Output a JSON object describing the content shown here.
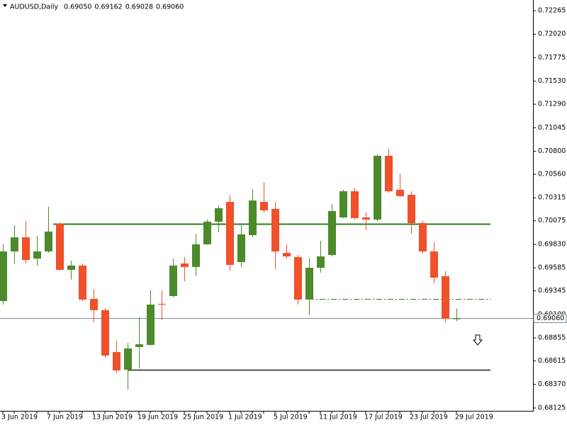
{
  "chart_data": {
    "type": "candlestick",
    "header": {
      "symbol": "AUDUSD,Daily",
      "ohlc_labels": [
        "0.69050",
        "0.69162",
        "0.69028",
        "0.69060"
      ]
    },
    "categories": [
      "3 Jun 2019",
      null,
      null,
      null,
      "7 Jun 2019",
      null,
      null,
      null,
      "13 Jun 2019",
      null,
      null,
      null,
      "19 Jun 2019",
      null,
      null,
      null,
      "25 Jun 2019",
      null,
      null,
      null,
      "1 Jul 2019",
      null,
      null,
      null,
      "5 Jul 2019",
      null,
      null,
      null,
      "11 Jul 2019",
      null,
      null,
      null,
      "17 Jul 2019",
      null,
      null,
      null,
      "23 Jul 2019",
      null,
      null,
      null,
      "29 Jul 2019"
    ],
    "series": [
      {
        "name": "AUDUSD",
        "up_color": "#4c8a2a",
        "down_color": "#f0502a",
        "open": [
          0.69239,
          0.69756,
          0.69903,
          0.69682,
          0.69756,
          0.70044,
          0.69564,
          0.69609,
          0.69262,
          0.69144,
          0.68708,
          0.68524,
          0.6876,
          0.68782,
          0.6921,
          0.69291,
          0.69631,
          0.69594,
          0.6983,
          0.70066,
          0.70273,
          0.69645,
          0.69926,
          0.70273,
          0.70199,
          0.69741,
          0.69697,
          0.69254,
          0.69586,
          0.69719,
          0.7011,
          0.70383,
          0.7011,
          0.70088,
          0.70752,
          0.70398,
          0.70347,
          0.70051,
          0.69756,
          0.69498,
          0.6905
        ],
        "high": [
          0.6983,
          0.70029,
          0.70074,
          0.69919,
          0.70221,
          0.70059,
          0.6966,
          0.69631,
          0.69365,
          0.69166,
          0.68826,
          0.68804,
          0.6907,
          0.6935,
          0.6935,
          0.69682,
          0.69697,
          0.69941,
          0.70088,
          0.70236,
          0.70339,
          0.70029,
          0.70406,
          0.70479,
          0.70273,
          0.6983,
          0.69719,
          0.69682,
          0.69866,
          0.70251,
          0.70398,
          0.7042,
          0.70162,
          0.70767,
          0.70826,
          0.70568,
          0.70383,
          0.70074,
          0.69852,
          0.6955,
          0.69162
        ],
        "low": [
          0.69202,
          0.69631,
          0.69631,
          0.69609,
          0.69741,
          0.69557,
          0.69461,
          0.69239,
          0.69018,
          0.68649,
          0.68487,
          0.68317,
          0.68538,
          0.68775,
          0.6904,
          0.69276,
          0.69446,
          0.69498,
          0.6983,
          0.69955,
          0.69557,
          0.69594,
          0.69903,
          0.70162,
          0.69572,
          0.69682,
          0.69202,
          0.69092,
          0.69535,
          0.69704,
          0.70103,
          0.70088,
          0.69978,
          0.70074,
          0.70369,
          0.70324,
          0.69941,
          0.69734,
          0.69424,
          0.69018,
          0.69028
        ],
        "close": [
          0.69756,
          0.69903,
          0.69667,
          0.69756,
          0.69963,
          0.69564,
          0.69609,
          0.69254,
          0.69144,
          0.68671,
          0.68516,
          0.68745,
          0.68789,
          0.69202,
          0.69202,
          0.69609,
          0.69594,
          0.6983,
          0.70066,
          0.70206,
          0.69616,
          0.69933,
          0.70287,
          0.70184,
          0.69756,
          0.69704,
          0.69254,
          0.69586,
          0.69704,
          0.70177,
          0.70383,
          0.70103,
          0.70088,
          0.70752,
          0.70383,
          0.70332,
          0.70051,
          0.69756,
          0.69483,
          0.69055,
          0.6906
        ]
      }
    ],
    "levels": [
      {
        "value": 0.70044,
        "color": "#2e7d1e",
        "style": "solid"
      },
      {
        "value": 0.68524,
        "color": "#505050",
        "style": "solid"
      },
      {
        "value": 0.69262,
        "color": "#2e7d1e",
        "style": "dashdot"
      }
    ],
    "current_price": {
      "value": 0.6906,
      "label": "0.69060"
    },
    "ylim": [
      0.68095,
      0.72376
    ],
    "yticks": [
      0.72265,
      {
        "value": 0.7202,
        "label": "0.72020"
      },
      0.71775,
      {
        "value": 0.7153,
        "label": "0.71530"
      },
      {
        "value": 0.7129,
        "label": "0.71290"
      },
      0.71045,
      {
        "value": 0.708,
        "label": "0.70800"
      },
      {
        "value": 0.7056,
        "label": "0.70560"
      },
      0.70315,
      0.70075,
      {
        "value": 0.6983,
        "label": "0.69830"
      },
      0.69585,
      0.69345,
      {
        "value": 0.691,
        "label": "0.69100"
      },
      0.68855,
      0.68615,
      {
        "value": 0.6837,
        "label": "0.68370"
      },
      0.68125
    ]
  }
}
